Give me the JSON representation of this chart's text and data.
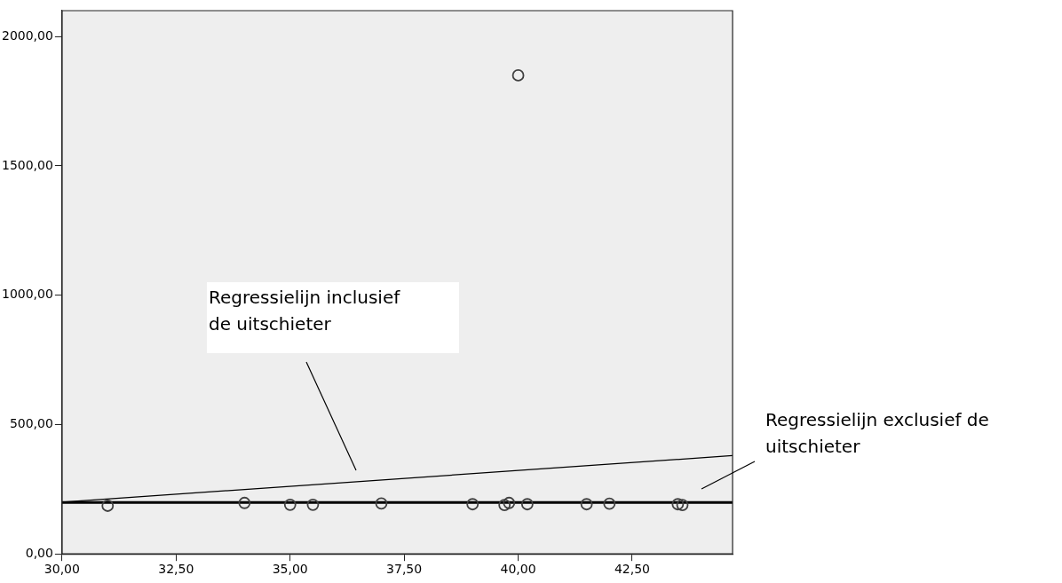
{
  "chart_data": {
    "type": "scatter",
    "marker": "circle",
    "grid": false,
    "legend": false,
    "xlim": [
      30,
      44.7
    ],
    "xticks": [
      {
        "value": 30,
        "label": "30,00"
      },
      {
        "value": 32.5,
        "label": "32,50"
      },
      {
        "value": 35,
        "label": "35,00"
      },
      {
        "value": 37.5,
        "label": "37,50"
      },
      {
        "value": 40,
        "label": "40,00"
      },
      {
        "value": 42.5,
        "label": "42,50"
      }
    ],
    "ylim": [
      0,
      2100
    ],
    "yticks": [
      {
        "value": 0,
        "label": "0,00"
      },
      {
        "value": 500,
        "label": "500,00"
      },
      {
        "value": 1000,
        "label": "1000,00"
      },
      {
        "value": 1500,
        "label": "1500,00"
      },
      {
        "value": 2000,
        "label": "2000,00"
      }
    ],
    "series": [
      {
        "color": "#404040",
        "x": [
          31,
          34,
          35,
          35.5,
          37,
          39,
          39.7,
          39.8,
          40,
          40.2,
          41.5,
          42,
          43.5,
          43.6
        ],
        "values": [
          186,
          197,
          190,
          190,
          195,
          192,
          189,
          197,
          1850,
          192,
          192,
          194,
          192,
          189
        ]
      },
      {
        "type": "line",
        "color": "#000000",
        "marker": "none",
        "x": [
          30,
          44.7
        ],
        "values": [
          200,
          380
        ]
      },
      {
        "type": "line",
        "color": "#000000",
        "marker": "none",
        "x": [
          30,
          44.7
        ],
        "values": [
          199,
          199
        ]
      }
    ],
    "annotations": [
      "Regressielijn inclusief de uitschieter",
      "Regressielijn exclusief de uitschieter"
    ]
  }
}
